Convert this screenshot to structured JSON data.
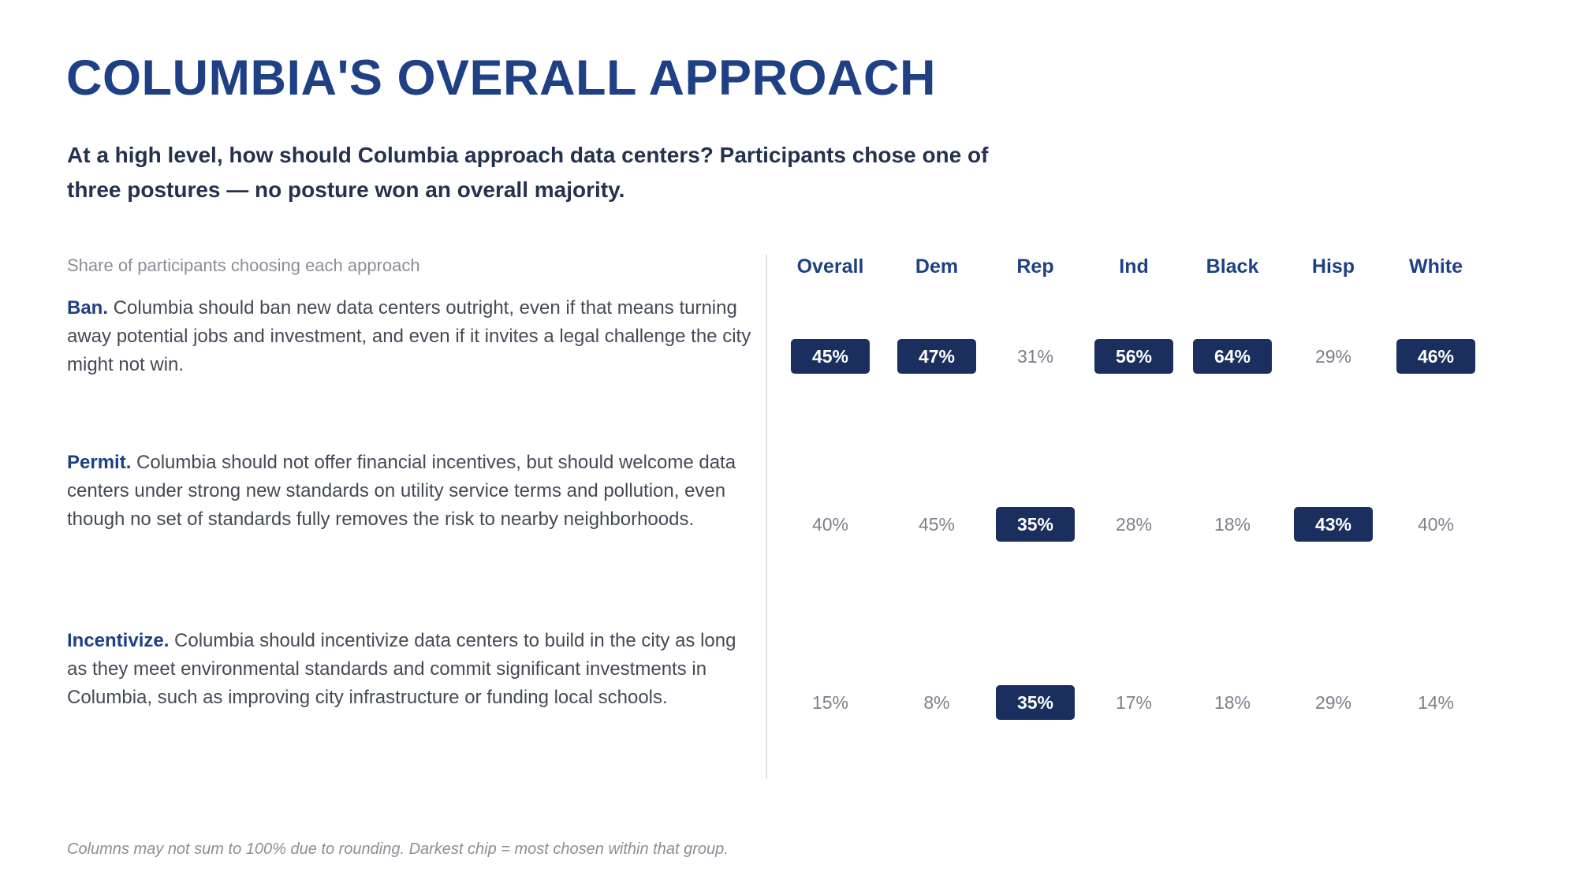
{
  "title": "COLUMBIA'S OVERALL APPROACH",
  "subtitle": "At a high level, how should Columbia approach data centers? Participants chose one of three postures — no posture won an overall majority.",
  "share_label": "Share of participants choosing each approach",
  "footnote": "Columns may not sum to 100% due to rounding. Darkest chip = most chosen within that group.",
  "colors": {
    "title": "#1f4084",
    "chip_fill": "#1a2f5e",
    "plain_value": "#7b808a"
  },
  "chart_data": {
    "type": "table",
    "columns": [
      "Overall",
      "Dem",
      "Rep",
      "Ind",
      "Black",
      "Hisp",
      "White"
    ],
    "rows": [
      {
        "lead": "Ban.",
        "text": "Columbia should ban new data centers outright, even if that means turning away potential jobs and investment, and even if it invites a legal challenge the city might not win.",
        "values": [
          "45%",
          "47%",
          "31%",
          "56%",
          "64%",
          "29%",
          "46%"
        ],
        "highlighted": [
          true,
          true,
          false,
          true,
          true,
          false,
          true
        ]
      },
      {
        "lead": "Permit.",
        "text": "Columbia should not offer financial incentives, but should welcome data centers under strong new standards on utility service terms and pollution, even though no set of standards fully removes the risk to nearby neighborhoods.",
        "values": [
          "40%",
          "45%",
          "35%",
          "28%",
          "18%",
          "43%",
          "40%"
        ],
        "highlighted": [
          false,
          false,
          true,
          false,
          false,
          true,
          false
        ]
      },
      {
        "lead": "Incentivize.",
        "text": "Columbia should incentivize data centers to build in the city as long as they meet environmental standards and commit significant investments in Columbia, such as improving city infrastructure or funding local schools.",
        "values": [
          "15%",
          "8%",
          "35%",
          "17%",
          "18%",
          "29%",
          "14%"
        ],
        "highlighted": [
          false,
          false,
          true,
          false,
          false,
          false,
          false
        ]
      }
    ]
  }
}
